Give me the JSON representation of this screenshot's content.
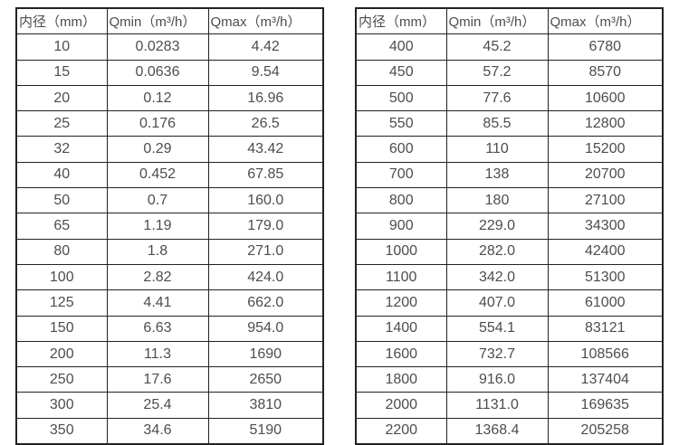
{
  "colors": {
    "background": "#ffffff",
    "border": "#222222",
    "text": "#4d4d4d"
  },
  "tables": [
    {
      "name": "small-diameter-table",
      "headers": [
        "内径（mm）",
        "Qmin（m³/h）",
        "Qmax（m³/h）"
      ],
      "rows": [
        [
          "10",
          "0.0283",
          "4.42"
        ],
        [
          "15",
          "0.0636",
          "9.54"
        ],
        [
          "20",
          "0.12",
          "16.96"
        ],
        [
          "25",
          "0.176",
          "26.5"
        ],
        [
          "32",
          "0.29",
          "43.42"
        ],
        [
          "40",
          "0.452",
          "67.85"
        ],
        [
          "50",
          "0.7",
          "160.0"
        ],
        [
          "65",
          "1.19",
          "179.0"
        ],
        [
          "80",
          "1.8",
          "271.0"
        ],
        [
          "100",
          "2.82",
          "424.0"
        ],
        [
          "125",
          "4.41",
          "662.0"
        ],
        [
          "150",
          "6.63",
          "954.0"
        ],
        [
          "200",
          "11.3",
          "1690"
        ],
        [
          "250",
          "17.6",
          "2650"
        ],
        [
          "300",
          "25.4",
          "3810"
        ],
        [
          "350",
          "34.6",
          "5190"
        ]
      ]
    },
    {
      "name": "large-diameter-table",
      "headers": [
        "内径（mm）",
        "Qmin（m³/h）",
        "Qmax（m³/h）"
      ],
      "rows": [
        [
          "400",
          "45.2",
          "6780"
        ],
        [
          "450",
          "57.2",
          "8570"
        ],
        [
          "500",
          "77.6",
          "10600"
        ],
        [
          "550",
          "85.5",
          "12800"
        ],
        [
          "600",
          "110",
          "15200"
        ],
        [
          "700",
          "138",
          "20700"
        ],
        [
          "800",
          "180",
          "27100"
        ],
        [
          "900",
          "229.0",
          "34300"
        ],
        [
          "1000",
          "282.0",
          "42400"
        ],
        [
          "1100",
          "342.0",
          "51300"
        ],
        [
          "1200",
          "407.0",
          "61000"
        ],
        [
          "1400",
          "554.1",
          "83121"
        ],
        [
          "1600",
          "732.7",
          "108566"
        ],
        [
          "1800",
          "916.0",
          "137404"
        ],
        [
          "2000",
          "1131.0",
          "169635"
        ],
        [
          "2200",
          "1368.4",
          "205258"
        ]
      ]
    }
  ]
}
